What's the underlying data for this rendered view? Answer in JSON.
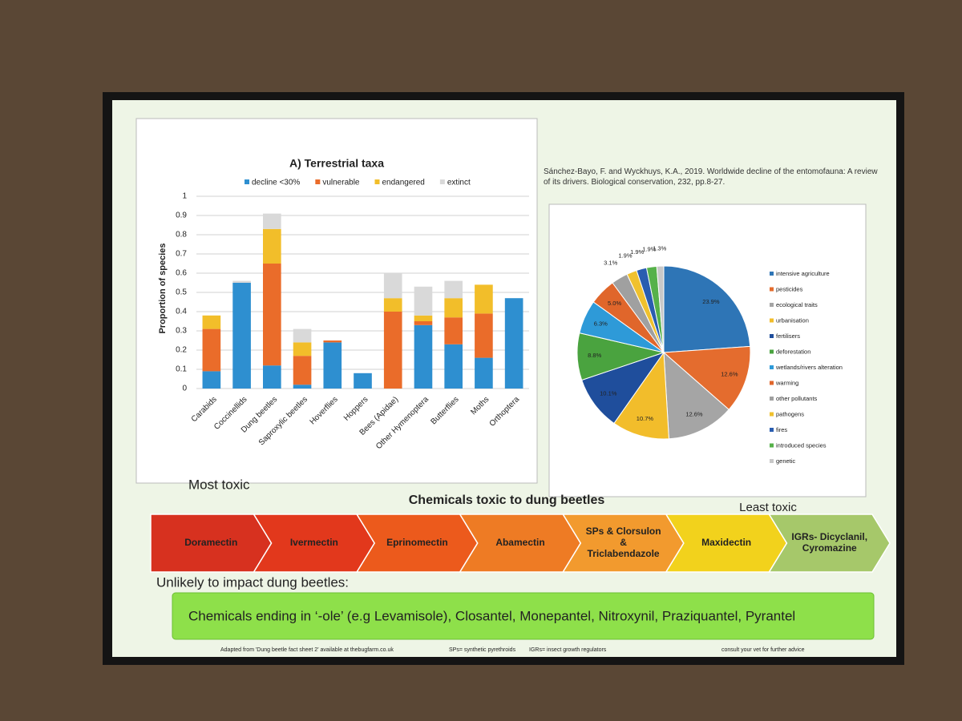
{
  "chart_data": [
    {
      "type": "bar",
      "stacked": true,
      "title": "A) Terrestrial taxa",
      "y_label": "Proportion of species",
      "categories": [
        "Carabids",
        "Coccinellids",
        "Dung beetles",
        "Saproxylic beetles",
        "Hoverflies",
        "Hoppers",
        "Bees (Apidae)",
        "Other Hymenoptera",
        "Butterflies",
        "Moths",
        "Orthoptera"
      ],
      "series": [
        {
          "name": "decline <30%",
          "color": "#2e8fd0",
          "values": [
            0.09,
            0.55,
            0.12,
            0.02,
            0.24,
            0.08,
            0,
            0.33,
            0.23,
            0.16,
            0.47
          ]
        },
        {
          "name": "vulnerable",
          "color": "#ea6c2a",
          "values": [
            0.22,
            0,
            0.53,
            0.15,
            0.01,
            0,
            0.4,
            0.02,
            0.14,
            0.23,
            0
          ]
        },
        {
          "name": "endangered",
          "color": "#f2be2a",
          "values": [
            0.07,
            0,
            0.18,
            0.07,
            0,
            0,
            0.07,
            0.03,
            0.1,
            0.15,
            0
          ]
        },
        {
          "name": "extinct",
          "color": "#d9d9d9",
          "values": [
            0,
            0.01,
            0.08,
            0.07,
            0,
            0,
            0.13,
            0.15,
            0.09,
            0,
            0
          ]
        }
      ],
      "ylim": [
        0,
        1
      ],
      "yticks": [
        0,
        0.1,
        0.2,
        0.3,
        0.4,
        0.5,
        0.6,
        0.7,
        0.8,
        0.9,
        1
      ],
      "grid": true,
      "legend": "top"
    },
    {
      "type": "pie",
      "categories": [
        "intensive agriculture",
        "pesticides",
        "ecological traits",
        "urbanisation",
        "fertilisers",
        "deforestation",
        "wetlands/rivers alteration",
        "warming",
        "other pollutants",
        "pathogens",
        "fires",
        "introduced species",
        "genetic"
      ],
      "values": [
        23.9,
        12.6,
        12.6,
        10.7,
        10.1,
        8.8,
        6.3,
        5.0,
        3.1,
        1.9,
        1.9,
        1.9,
        1.3
      ],
      "value_labels": [
        "23.9%",
        "12.6%",
        "12.6%",
        "10.7%",
        "10.1%",
        "8.8%",
        "6.3%",
        "5.0%",
        "3.1%",
        "1.9%",
        "1.9%",
        "1.9%",
        "1.3%"
      ],
      "colors": [
        "#2e75b6",
        "#e46c2e",
        "#a5a5a5",
        "#f2bd2b",
        "#1f4e9c",
        "#4aa33f",
        "#2e9ad8",
        "#e0662b",
        "#a0a0a0",
        "#f0c12e",
        "#2a5db0",
        "#56b14a",
        "#c8c8c8"
      ],
      "legend": "right"
    }
  ],
  "citation": "Sánchez-Bayo, F. and Wyckhuys, K.A., 2019. Worldwide decline of the entomofauna: A review of its drivers. Biological conservation, 232, pp.8-27.",
  "most_toxic": "Most toxic",
  "heading": "Chemicals toxic to dung beetles",
  "least_toxic": "Least toxic",
  "chemicals": [
    {
      "lines": [
        "Doramectin"
      ],
      "color": "#d7311f"
    },
    {
      "lines": [
        "Ivermectin"
      ],
      "color": "#e2381c"
    },
    {
      "lines": [
        "Eprinomectin"
      ],
      "color": "#ec5a1c"
    },
    {
      "lines": [
        "Abamectin"
      ],
      "color": "#ee7b24"
    },
    {
      "lines": [
        "SPs & Clorsulon",
        "&",
        "Triclabendazole"
      ],
      "color": "#f29a2e"
    },
    {
      "lines": [
        "Maxidectin"
      ],
      "color": "#f2d21c"
    },
    {
      "lines": [
        "IGRs- Dicyclanil,",
        "Cyromazine"
      ],
      "color": "#a6c86a"
    }
  ],
  "unlikely_heading": "Unlikely to impact dung beetles:",
  "unlikely": "Chemicals ending in ‘-ole’ (e.g Levamisole), Closantel, Monepantel, Nitroxynil, Praziquantel, Pyrantel",
  "footer": [
    "Adapted from 'Dung beetle fact sheet 2' available at thebugfarm.co.uk",
    "SPs= synthetic pyrethroids",
    "IGRs= insect growth regulators",
    "consult your vet for further advice"
  ]
}
